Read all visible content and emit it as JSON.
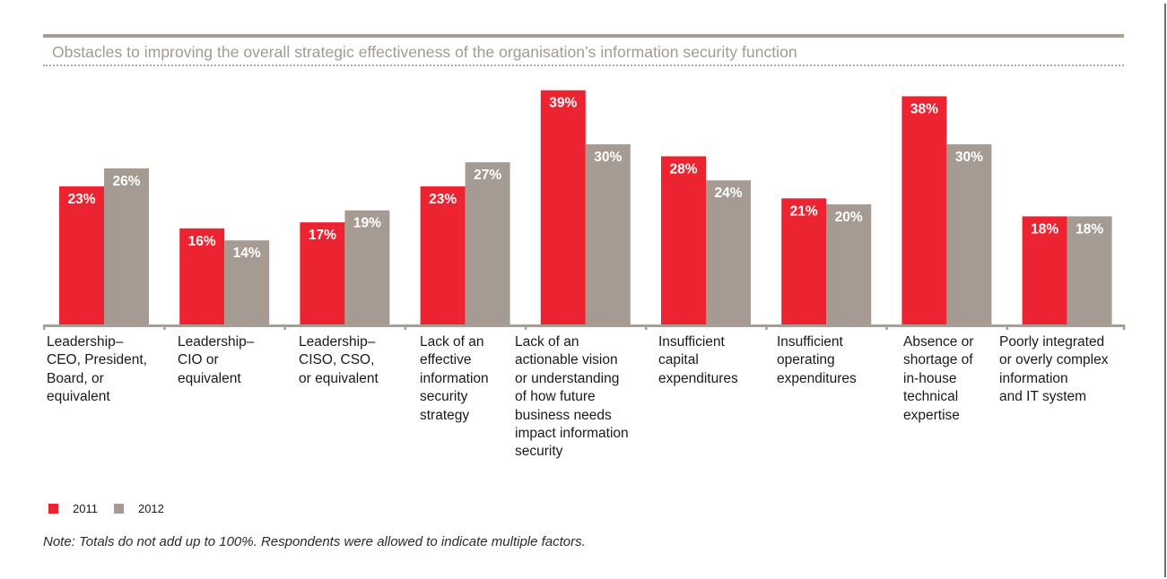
{
  "colors": {
    "series_2011": "#ec2431",
    "series_2012": "#a59b92",
    "title": "#a39a92",
    "axis": "#a79e96"
  },
  "note": "Note: Totals do not add up to 100%. Respondents were allowed to indicate multiple factors.",
  "chart_data": {
    "type": "bar",
    "title": "Obstacles to improving the overall strategic effectiveness of the organisation’s information security function",
    "xlabel": "",
    "ylabel": "",
    "ylim": [
      0,
      40
    ],
    "grid": false,
    "legend_position": "bottom-left",
    "value_format": "percent",
    "categories": [
      "Leadership–\nCEO, President,\nBoard, or\nequivalent",
      "Leadership–\nCIO or\nequivalent",
      "Leadership–\nCISO, CSO,\nor equivalent",
      "Lack of an\neffective\ninformation\nsecurity\nstrategy",
      "Lack of an\nactionable vision\nor understanding\nof how future\nbusiness needs\nimpact information\nsecurity",
      "Insufficient\ncapital\nexpenditures",
      "Insufficient\noperating\nexpenditures",
      "Absence or\nshortage of\nin-house\ntechnical\nexpertise",
      "Poorly integrated\nor overly complex\ninformation\nand IT system"
    ],
    "series": [
      {
        "name": "2011",
        "values": [
          23,
          16,
          17,
          23,
          39,
          28,
          21,
          38,
          18
        ],
        "labels": [
          "23%",
          "16%",
          "17%",
          "23%",
          "39%",
          "28%",
          "21%",
          "38%",
          "18%"
        ]
      },
      {
        "name": "2012",
        "values": [
          26,
          14,
          19,
          27,
          30,
          24,
          20,
          30,
          18
        ],
        "labels": [
          "26%",
          "14%",
          "19%",
          "27%",
          "30%",
          "24%",
          "20%",
          "30%",
          "18%"
        ]
      }
    ]
  }
}
